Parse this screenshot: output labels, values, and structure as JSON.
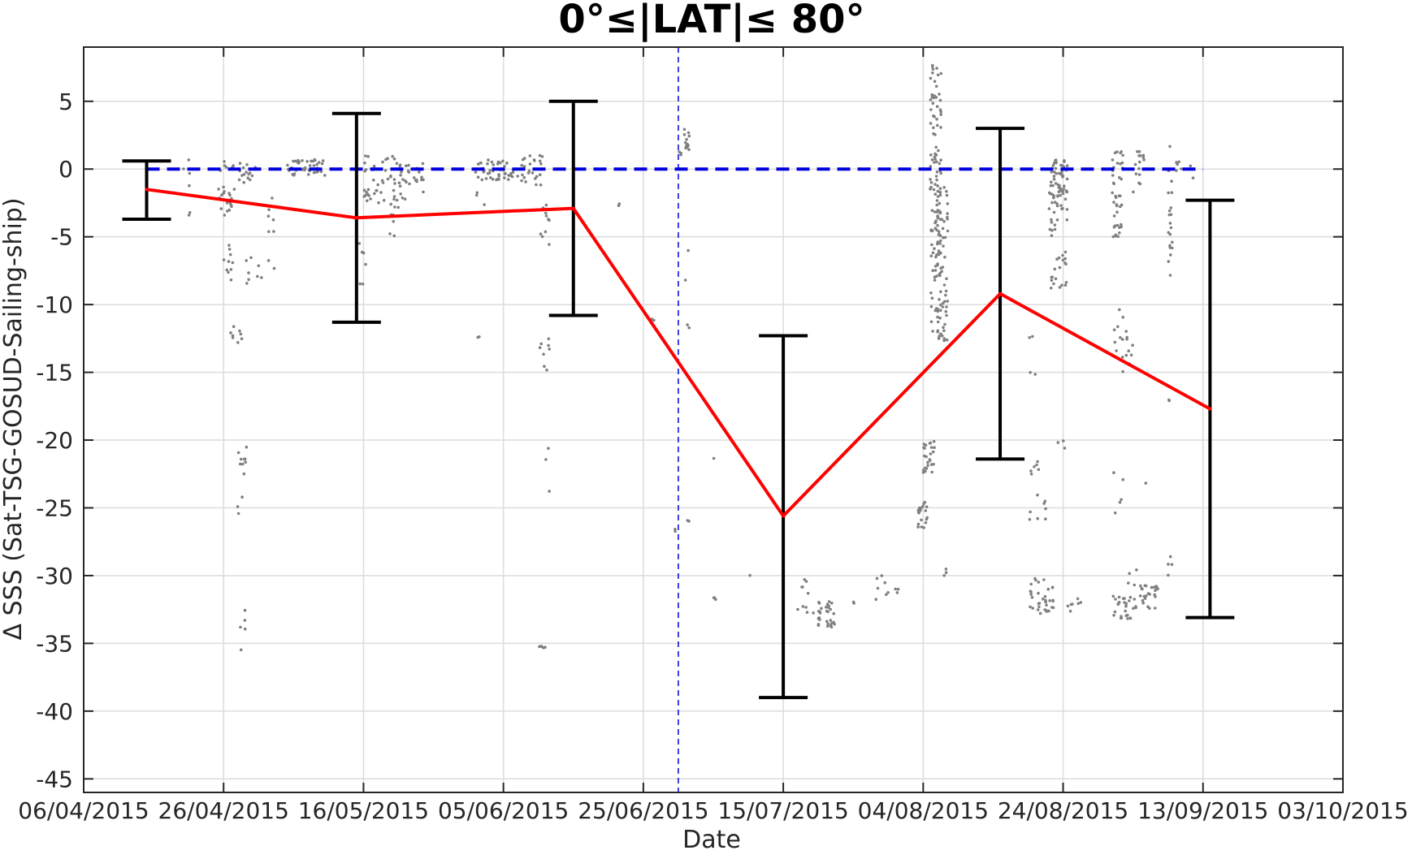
{
  "chart_data": {
    "type": "scatter",
    "title": "0°≤|LAT|≤ 80°",
    "xlabel": "Date",
    "ylabel": "Δ SSS (Sat-TSG-GOSUD-Sailing-ship)",
    "xlim": [
      "2015-04-06",
      "2015-10-03"
    ],
    "ylim": [
      -46,
      9
    ],
    "x_ticks": [
      "06/04/2015",
      "26/04/2015",
      "16/05/2015",
      "05/06/2015",
      "25/06/2015",
      "15/07/2015",
      "04/08/2015",
      "24/08/2015",
      "13/09/2015",
      "03/10/2015"
    ],
    "y_ticks": [
      5,
      0,
      -5,
      -10,
      -15,
      -20,
      -25,
      -30,
      -35,
      -40,
      -45
    ],
    "grid": true,
    "colors": {
      "mean_line": "#ff0000",
      "zero_line": "#0000dd",
      "error_bars": "#000000",
      "scatter": "#808080"
    },
    "zero_line": {
      "y": 0,
      "x_start": "2015-04-15",
      "x_end": "2015-09-13"
    },
    "vertical_line": {
      "x": "2015-06-30"
    },
    "mean_series": {
      "x": [
        "2015-04-15",
        "2015-05-15",
        "2015-06-15",
        "2015-07-15",
        "2015-08-15",
        "2015-09-14"
      ],
      "y": [
        -1.5,
        -3.6,
        -2.9,
        -25.6,
        -9.2,
        -17.7
      ]
    },
    "error_bars": [
      {
        "x": "2015-04-15",
        "low": -3.7,
        "high": 0.6
      },
      {
        "x": "2015-05-15",
        "low": -11.3,
        "high": 4.1
      },
      {
        "x": "2015-06-15",
        "low": -10.8,
        "high": 5.0
      },
      {
        "x": "2015-07-15",
        "low": -39.0,
        "high": -12.3
      },
      {
        "x": "2015-08-15",
        "low": -21.4,
        "high": 3.0
      },
      {
        "x": "2015-09-14",
        "low": -33.1,
        "high": -2.3
      }
    ],
    "scatter_clusters": [
      {
        "x_start": "2015-04-20",
        "x_end": "2015-04-21",
        "y_min": -5.2,
        "y_max": 0.7,
        "n": 6
      },
      {
        "x_start": "2015-04-25",
        "x_end": "2015-04-27",
        "y_min": -3.5,
        "y_max": 0.8,
        "n": 25
      },
      {
        "x_start": "2015-04-26",
        "x_end": "2015-04-27",
        "y_min": -8.2,
        "y_max": -5.5,
        "n": 10
      },
      {
        "x_start": "2015-04-27",
        "x_end": "2015-04-28",
        "y_min": -14,
        "y_max": -11,
        "n": 8
      },
      {
        "x_start": "2015-04-28",
        "x_end": "2015-04-29",
        "y_min": -27,
        "y_max": -20.5,
        "n": 12
      },
      {
        "x_start": "2015-04-28",
        "x_end": "2015-04-29",
        "y_min": -35.5,
        "y_max": -32.3,
        "n": 5
      },
      {
        "x_start": "2015-04-28",
        "x_end": "2015-04-30",
        "y_min": -1,
        "y_max": 0.6,
        "n": 15
      },
      {
        "x_start": "2015-04-29",
        "x_end": "2015-05-01",
        "y_min": -8.7,
        "y_max": -6.5,
        "n": 8
      },
      {
        "x_start": "2015-05-02",
        "x_end": "2015-05-03",
        "y_min": -7.5,
        "y_max": -2,
        "n": 8
      },
      {
        "x_start": "2015-05-05",
        "x_end": "2015-05-10",
        "y_min": -0.5,
        "y_max": 0.7,
        "n": 40
      },
      {
        "x_start": "2015-05-15",
        "x_end": "2015-05-16",
        "y_min": -9,
        "y_max": -4.5,
        "n": 6
      },
      {
        "x_start": "2015-05-16",
        "x_end": "2015-05-22",
        "y_min": -2.5,
        "y_max": 1,
        "n": 60
      },
      {
        "x_start": "2015-05-19",
        "x_end": "2015-05-21",
        "y_min": -5,
        "y_max": -2.5,
        "n": 8
      },
      {
        "x_start": "2015-05-23",
        "x_end": "2015-05-24",
        "y_min": -2,
        "y_max": 0.5,
        "n": 12
      },
      {
        "x_start": "2015-06-01",
        "x_end": "2015-06-06",
        "y_min": -0.8,
        "y_max": 0.7,
        "n": 45
      },
      {
        "x_start": "2015-06-01",
        "x_end": "2015-06-02",
        "y_min": -2.8,
        "y_max": -1.5,
        "n": 3
      },
      {
        "x_start": "2015-06-01",
        "x_end": "2015-06-01",
        "y_min": -12.5,
        "y_max": -12.3,
        "n": 2
      },
      {
        "x_start": "2015-06-07",
        "x_end": "2015-06-10",
        "y_min": -1.2,
        "y_max": 1,
        "n": 25
      },
      {
        "x_start": "2015-06-10",
        "x_end": "2015-06-11",
        "y_min": -6,
        "y_max": -2.5,
        "n": 10
      },
      {
        "x_start": "2015-06-10",
        "x_end": "2015-06-11",
        "y_min": -15,
        "y_max": -12.3,
        "n": 8
      },
      {
        "x_start": "2015-06-10",
        "x_end": "2015-06-11",
        "y_min": -35.5,
        "y_max": -35,
        "n": 5
      },
      {
        "x_start": "2015-06-11",
        "x_end": "2015-06-11",
        "y_min": -24,
        "y_max": -20,
        "n": 3
      },
      {
        "x_start": "2015-06-21",
        "x_end": "2015-06-21",
        "y_min": -2.8,
        "y_max": -2.5,
        "n": 2
      },
      {
        "x_start": "2015-06-26",
        "x_end": "2015-06-26",
        "y_min": -11.2,
        "y_max": -10.9,
        "n": 3
      },
      {
        "x_start": "2015-06-29",
        "x_end": "2015-06-29",
        "y_min": -26.8,
        "y_max": -26.5,
        "n": 2
      },
      {
        "x_start": "2015-06-30",
        "x_end": "2015-07-01",
        "y_min": 1,
        "y_max": 3,
        "n": 15
      },
      {
        "x_start": "2015-07-01",
        "x_end": "2015-07-01",
        "y_min": -26.2,
        "y_max": -25.9,
        "n": 2
      },
      {
        "x_start": "2015-07-01",
        "x_end": "2015-07-01",
        "y_min": -11.8,
        "y_max": -4.2,
        "n": 4
      },
      {
        "x_start": "2015-07-05",
        "x_end": "2015-07-05",
        "y_min": -31.8,
        "y_max": -31.6,
        "n": 3
      },
      {
        "x_start": "2015-07-05",
        "x_end": "2015-07-05",
        "y_min": -21.4,
        "y_max": -21.3,
        "n": 1
      },
      {
        "x_start": "2015-07-10",
        "x_end": "2015-07-10",
        "y_min": -30,
        "y_max": -29.9,
        "n": 1
      },
      {
        "x_start": "2015-07-17",
        "x_end": "2015-07-19",
        "y_min": -33.5,
        "y_max": -29,
        "n": 10
      },
      {
        "x_start": "2015-07-20",
        "x_end": "2015-07-22",
        "y_min": -33.8,
        "y_max": -31.8,
        "n": 30
      },
      {
        "x_start": "2015-07-25",
        "x_end": "2015-07-25",
        "y_min": -32.1,
        "y_max": -31.9,
        "n": 2
      },
      {
        "x_start": "2015-07-28",
        "x_end": "2015-07-31",
        "y_min": -31.8,
        "y_max": -29.8,
        "n": 10
      },
      {
        "x_start": "2015-08-03",
        "x_end": "2015-08-04",
        "y_min": -26.5,
        "y_max": -24.5,
        "n": 20
      },
      {
        "x_start": "2015-08-04",
        "x_end": "2015-08-05",
        "y_min": -22.5,
        "y_max": -20,
        "n": 25
      },
      {
        "x_start": "2015-08-05",
        "x_end": "2015-08-06",
        "y_min": -12,
        "y_max": 8.2,
        "n": 120
      },
      {
        "x_start": "2015-08-06",
        "x_end": "2015-08-07",
        "y_min": -12.7,
        "y_max": -1,
        "n": 60
      },
      {
        "x_start": "2015-08-07",
        "x_end": "2015-08-07",
        "y_min": -30.2,
        "y_max": -29,
        "n": 3
      },
      {
        "x_start": "2015-08-19",
        "x_end": "2015-08-20",
        "y_min": -12.5,
        "y_max": -12.2,
        "n": 2
      },
      {
        "x_start": "2015-08-19",
        "x_end": "2015-08-20",
        "y_min": -15.2,
        "y_max": -14.8,
        "n": 2
      },
      {
        "x_start": "2015-08-19",
        "x_end": "2015-08-20",
        "y_min": -26,
        "y_max": -21.5,
        "n": 10
      },
      {
        "x_start": "2015-08-19",
        "x_end": "2015-08-22",
        "y_min": -32.8,
        "y_max": -30.2,
        "n": 35
      },
      {
        "x_start": "2015-08-21",
        "x_end": "2015-08-21",
        "y_min": -25.9,
        "y_max": -23.8,
        "n": 4
      },
      {
        "x_start": "2015-08-22",
        "x_end": "2015-08-24",
        "y_min": -3,
        "y_max": 1,
        "n": 70
      },
      {
        "x_start": "2015-08-22",
        "x_end": "2015-08-24",
        "y_min": -8.8,
        "y_max": -3,
        "n": 30
      },
      {
        "x_start": "2015-08-23",
        "x_end": "2015-08-24",
        "y_min": -20.6,
        "y_max": -20,
        "n": 3
      },
      {
        "x_start": "2015-08-24",
        "x_end": "2015-08-25",
        "y_min": -32.7,
        "y_max": -32.1,
        "n": 4
      },
      {
        "x_start": "2015-08-26",
        "x_end": "2015-08-26",
        "y_min": -32.2,
        "y_max": -31.7,
        "n": 3
      },
      {
        "x_start": "2015-08-31",
        "x_end": "2015-09-01",
        "y_min": -5,
        "y_max": 1.5,
        "n": 40
      },
      {
        "x_start": "2015-08-31",
        "x_end": "2015-09-01",
        "y_min": -15.5,
        "y_max": -10,
        "n": 10
      },
      {
        "x_start": "2015-08-31",
        "x_end": "2015-09-01",
        "y_min": -26,
        "y_max": -21,
        "n": 5
      },
      {
        "x_start": "2015-08-31",
        "x_end": "2015-09-03",
        "y_min": -33.2,
        "y_max": -31.5,
        "n": 30
      },
      {
        "x_start": "2015-09-02",
        "x_end": "2015-09-03",
        "y_min": -15.5,
        "y_max": -9.5,
        "n": 8
      },
      {
        "x_start": "2015-09-02",
        "x_end": "2015-09-03",
        "y_min": -31,
        "y_max": -29.5,
        "n": 4
      },
      {
        "x_start": "2015-09-03",
        "x_end": "2015-09-04",
        "y_min": -2,
        "y_max": 1.5,
        "n": 15
      },
      {
        "x_start": "2015-09-04",
        "x_end": "2015-09-05",
        "y_min": -23.4,
        "y_max": -23.1,
        "n": 1
      },
      {
        "x_start": "2015-09-04",
        "x_end": "2015-09-06",
        "y_min": -32.5,
        "y_max": -30.5,
        "n": 25
      },
      {
        "x_start": "2015-09-08",
        "x_end": "2015-09-08",
        "y_min": -8,
        "y_max": 1.7,
        "n": 20
      },
      {
        "x_start": "2015-09-08",
        "x_end": "2015-09-08",
        "y_min": -17.2,
        "y_max": -16.8,
        "n": 2
      },
      {
        "x_start": "2015-09-08",
        "x_end": "2015-09-08",
        "y_min": -30.3,
        "y_max": -28.5,
        "n": 4
      },
      {
        "x_start": "2015-09-09",
        "x_end": "2015-09-11",
        "y_min": -0.8,
        "y_max": 0.7,
        "n": 8
      }
    ]
  }
}
